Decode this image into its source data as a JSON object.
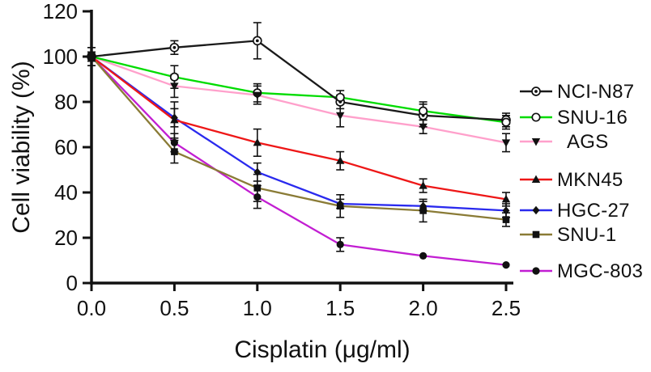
{
  "figure": {
    "background": "#ffffff"
  },
  "chart_data": {
    "type": "line",
    "title": "",
    "xlabel": "Cisplatin (μg/ml)",
    "ylabel": "Cell viability (%)",
    "x": [
      0.0,
      0.5,
      1.0,
      1.5,
      2.0,
      2.5
    ],
    "x_tick_labels": [
      "0.0",
      "0.5",
      "1.0",
      "1.5",
      "2.0",
      "2.5"
    ],
    "y_ticks": [
      0,
      20,
      40,
      60,
      80,
      100,
      120
    ],
    "xlim": [
      0,
      2.6
    ],
    "ylim": [
      0,
      120
    ],
    "grid": false,
    "legend_position": "right",
    "marker_color": "#111111",
    "error_bar_color": "#111111",
    "series": [
      {
        "name": "NCI-N87",
        "color": "#1a1a1a",
        "marker": "circle-dot",
        "values": [
          100,
          104,
          107,
          80,
          74,
          72
        ],
        "errors": [
          4,
          3,
          8,
          3,
          5,
          3
        ]
      },
      {
        "name": "SNU-16",
        "color": "#00dc00",
        "marker": "open-circle",
        "values": [
          100,
          91,
          84,
          82,
          76,
          71
        ],
        "errors": [
          4,
          5,
          4,
          3,
          4,
          3
        ]
      },
      {
        "name": "AGS",
        "color": "#ffa0cb",
        "marker": "triangle-down",
        "values": [
          100,
          87,
          83,
          74,
          69,
          62
        ],
        "errors": [
          2,
          5,
          4,
          5,
          3,
          4
        ]
      },
      {
        "name": "MKN45",
        "color": "#ee1717",
        "marker": "triangle-up",
        "values": [
          100,
          72,
          62,
          54,
          43,
          37
        ],
        "errors": [
          2,
          8,
          6,
          4,
          3,
          3
        ]
      },
      {
        "name": "HGC-27",
        "color": "#2a2aee",
        "marker": "diamond",
        "values": [
          100,
          73,
          49,
          35,
          34,
          32
        ],
        "errors": [
          2,
          4,
          4,
          2,
          2,
          3
        ]
      },
      {
        "name": "SNU-1",
        "color": "#8a7b36",
        "marker": "square",
        "values": [
          100,
          58,
          42,
          34,
          32,
          28
        ],
        "errors": [
          2,
          5,
          6,
          5,
          5,
          3
        ]
      },
      {
        "name": "MGC-803",
        "color": "#c21ed2",
        "marker": "circle",
        "values": [
          100,
          62,
          38,
          17,
          12,
          8
        ],
        "errors": [
          2,
          4,
          5,
          3,
          0,
          0
        ]
      }
    ]
  }
}
